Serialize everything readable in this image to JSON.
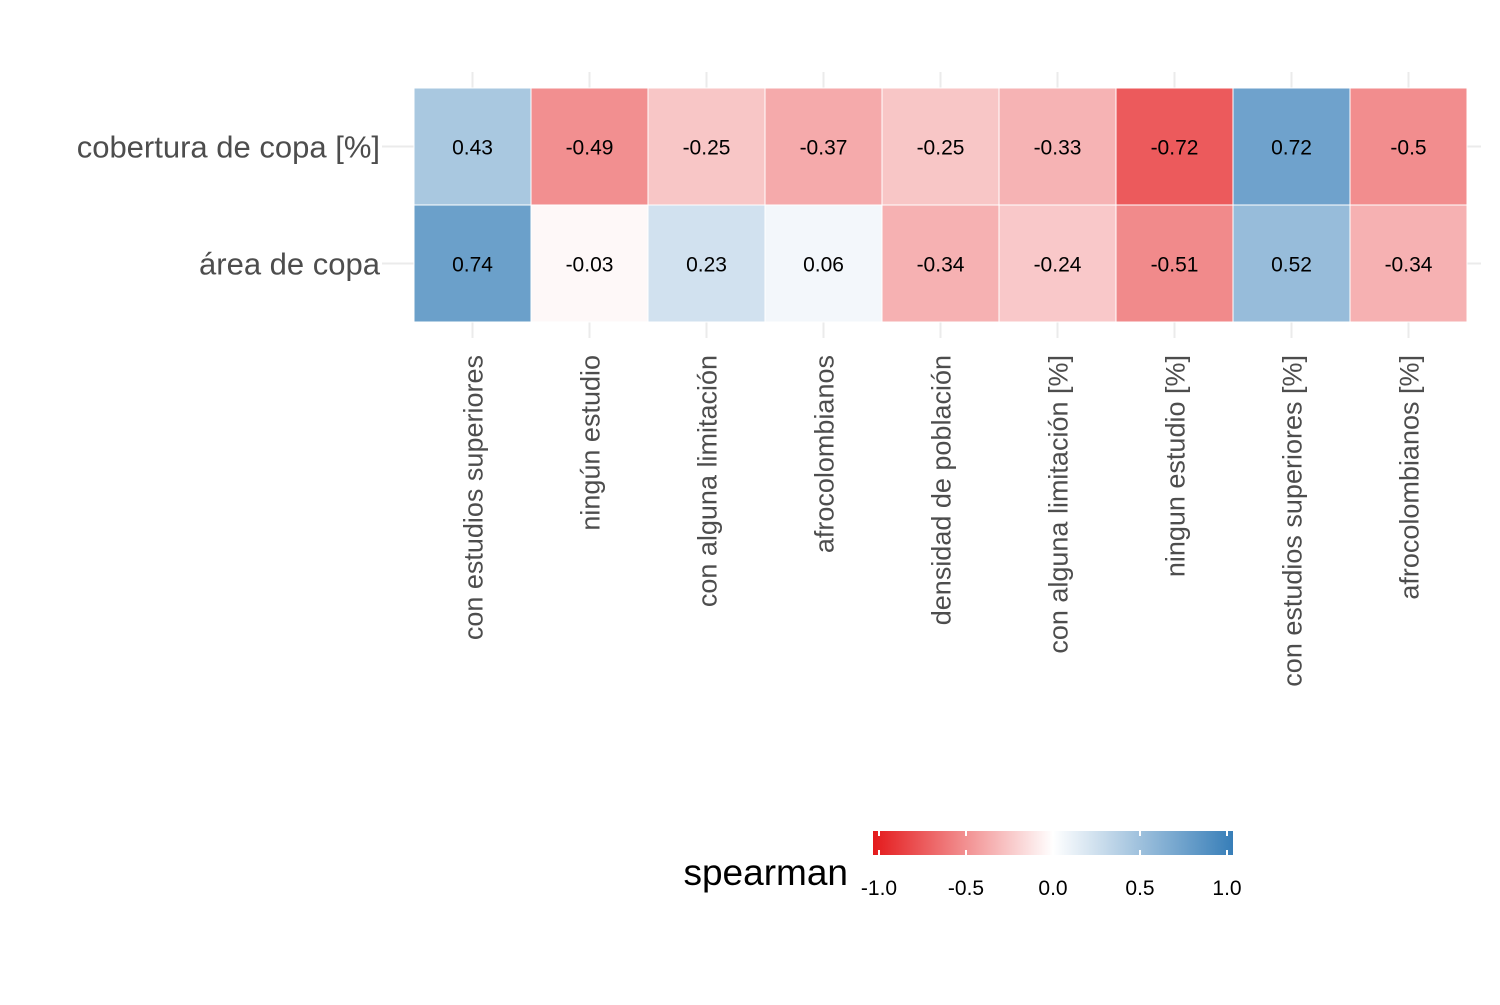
{
  "chart_data": {
    "type": "heatmap",
    "title": "",
    "xlabel": "",
    "ylabel": "",
    "rows": [
      "cobertura de copa [%]",
      "área de copa"
    ],
    "columns": [
      "con estudios superiores",
      "ningún estudio",
      "con alguna limitación",
      "afrocolombianos",
      "densidad de población",
      "con alguna limitación [%]",
      "ningun estudio [%]",
      "con estudios superiores [%]",
      "afrocolombianos [%]"
    ],
    "values": [
      [
        0.43,
        -0.49,
        -0.25,
        -0.37,
        -0.25,
        -0.33,
        -0.72,
        0.72,
        -0.5
      ],
      [
        0.74,
        -0.03,
        0.23,
        0.06,
        -0.34,
        -0.24,
        -0.51,
        0.52,
        -0.34
      ]
    ],
    "value_labels": [
      [
        "0.43",
        "-0.49",
        "-0.25",
        "-0.37",
        "-0.25",
        "-0.33",
        "-0.72",
        "0.72",
        "-0.5"
      ],
      [
        "0.74",
        "-0.03",
        "0.23",
        "0.06",
        "-0.34",
        "-0.24",
        "-0.51",
        "0.52",
        "-0.34"
      ]
    ],
    "legend": {
      "title": "spearman",
      "position": "bottom",
      "range": [
        -1,
        1
      ],
      "breaks": [
        -1.0,
        -0.5,
        0.0,
        0.5,
        1.0
      ],
      "break_labels": [
        "-1.0",
        "-0.5",
        "0.0",
        "0.5",
        "1.0"
      ],
      "colors": {
        "low": "#e41a1c",
        "mid": "#ffffff",
        "high": "#377eb8"
      }
    }
  }
}
